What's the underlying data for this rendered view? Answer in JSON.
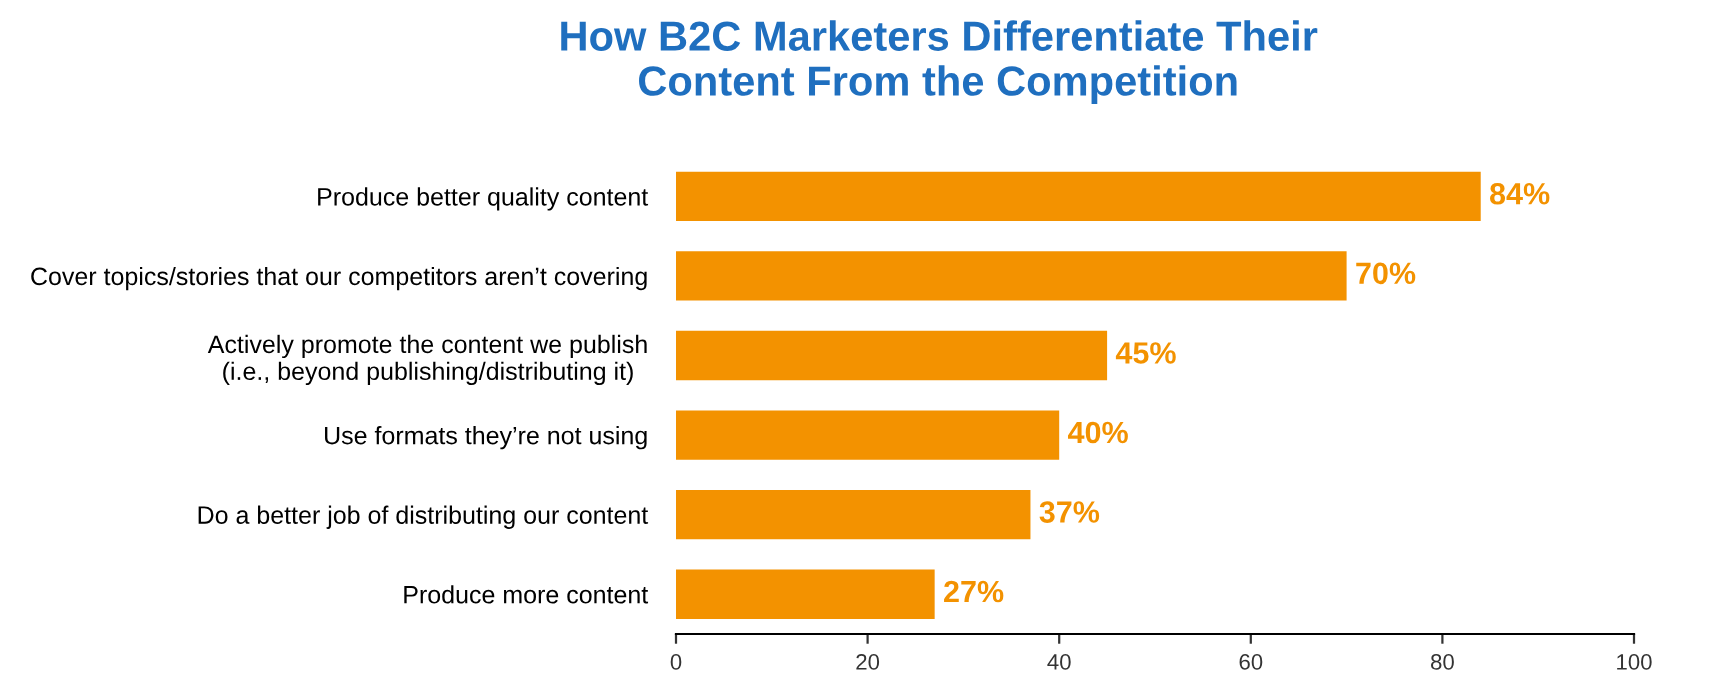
{
  "chart_data": {
    "type": "bar",
    "orientation": "horizontal",
    "title": "How B2C Marketers Differentiate Their\nContent From the Competition",
    "categories": [
      "Produce better quality content",
      "Cover topics/stories that our competitors aren’t covering",
      "Actively promote the content we publish\n(i.e., beyond publishing/distributing it)",
      "Use formats they’re not using",
      "Do a better job of distributing our content",
      "Produce more content"
    ],
    "values": [
      84,
      70,
      45,
      40,
      37,
      27
    ],
    "value_labels": [
      "84%",
      "70%",
      "45%",
      "40%",
      "37%",
      "27%"
    ],
    "color": "#f39200",
    "xlim": [
      0,
      100
    ],
    "xticks": [
      0,
      20,
      40,
      60,
      80,
      100
    ],
    "grid": false
  }
}
